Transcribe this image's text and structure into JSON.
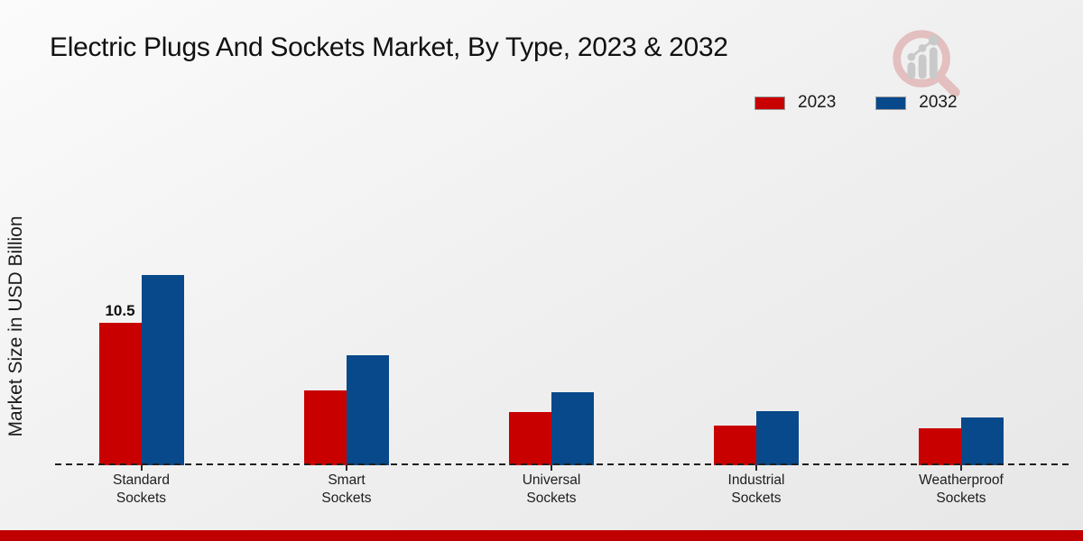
{
  "chart_data": {
    "type": "bar",
    "title": "Electric Plugs And Sockets Market, By Type, 2023 & 2032",
    "ylabel": "Market Size in USD Billion",
    "xlabel": "",
    "categories": [
      "Standard Sockets",
      "Smart Sockets",
      "Universal Sockets",
      "Industrial Sockets",
      "Weatherproof Sockets"
    ],
    "series": [
      {
        "name": "2023",
        "color": "#c80000",
        "values": [
          10.5,
          5.5,
          3.9,
          2.9,
          2.7
        ]
      },
      {
        "name": "2032",
        "color": "#07498a",
        "values": [
          14.0,
          8.1,
          5.4,
          4.0,
          3.5
        ]
      }
    ],
    "annotations": [
      {
        "text": "10.5",
        "category_index": 0,
        "series_index": 0
      }
    ],
    "ylim": [
      0,
      15
    ],
    "grid": "off",
    "axis_style": "dashed-zero-baseline-only",
    "legend_position": "top-right",
    "data_label_shown_only_for": "Standard Sockets 2023"
  },
  "branding": {
    "logo_icon": "magnifier-bar-chart-logo",
    "logo_ring_color": "#e3bdbd",
    "logo_bars_color": "#c7c7c7"
  },
  "footer": {
    "accent_bar_color": "#c00000"
  }
}
